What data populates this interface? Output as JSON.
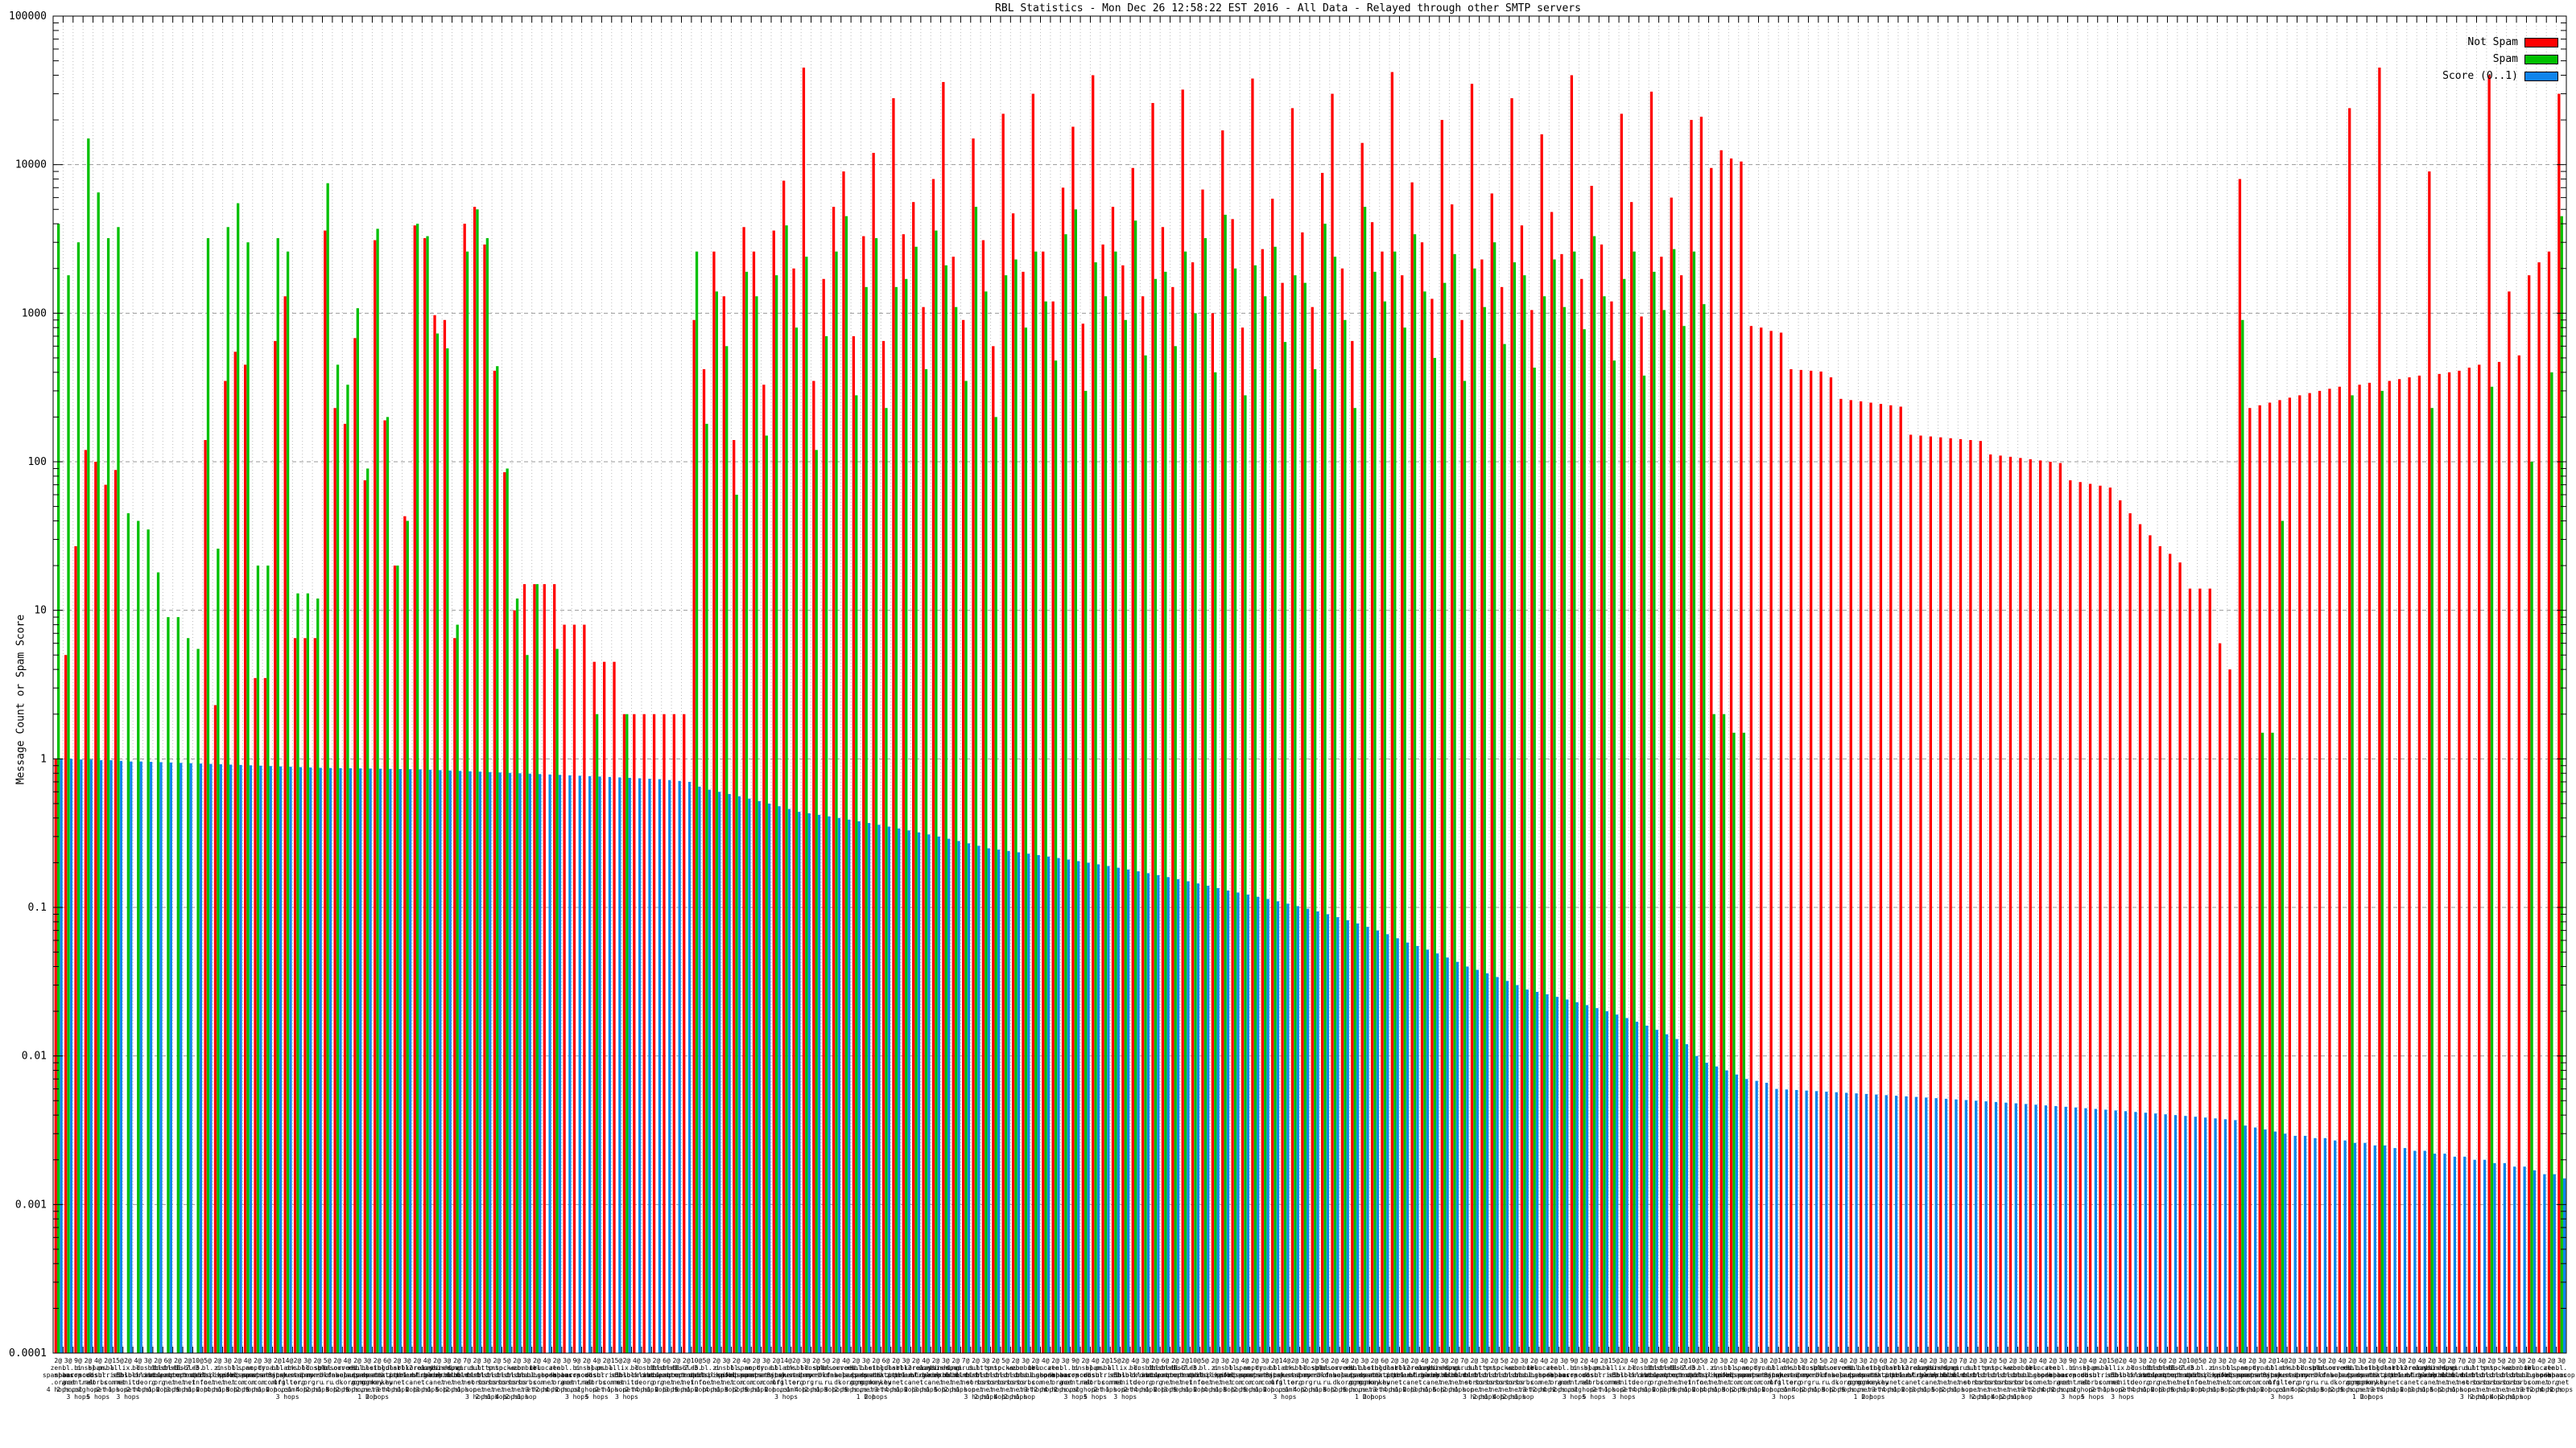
{
  "title": "RBL Statistics - Mon Dec 26 12:58:22 EST 2016 - All Data - Relayed through other SMTP servers",
  "chart_data": {
    "type": "bar",
    "title": "RBL Statistics - Mon Dec 26 12:58:22 EST 2016 - All Data - Relayed through other SMTP servers",
    "ylabel": "Message Count or Spam Score",
    "yscale": "log",
    "ylim": [
      0.0001,
      100000
    ],
    "ytick_labels": [
      "100000",
      "10000",
      "1000",
      "100",
      "10",
      "1",
      "0.1",
      "0.01",
      "0.001",
      "0.0001"
    ],
    "grid": true,
    "legend_position": "top-right-inside",
    "legend": [
      {
        "label": "Not Spam",
        "color": "#ff0000"
      },
      {
        "label": "Spam",
        "color": "#00c000"
      },
      {
        "label": "Score (0..1)",
        "color": "#0f84ec"
      }
    ],
    "colors": {
      "not_spam": "#ff0000",
      "spam": "#00c000",
      "score": "#0f84ec",
      "grid_minor": "#bbbbbb",
      "grid_major": "#999999",
      "frame": "#000000"
    },
    "n_categories": 252,
    "x_labels_note": "Per-bar labels of form count@rbl-domain N hops; drawn overlapping and illegible in source. Representative pool cycled across all 252 categories.",
    "x_label_pool": [
      "2@zen.spamhaus.org 4 hops",
      "3@bl.spamcop.net 2 hops",
      "9@b.barracudacentral.org 3 hops",
      "2@dnsbl.sorbs.net 1 hop",
      "4@spam.dnsbl.sorbs.net 5 hops",
      "2@psbl.surriel.com 2 hops",
      "15@all.s5h.net 1 hop",
      "2@ix.dnsbl.manitu.net 3 hops",
      "4@bl.blocklist.de 2 hops",
      "3@dnsbl.dronebl.org 4 hops",
      "2@cbl.abuseat.org 1 hop",
      "6@dnsbl-1.uceprotect.net 2 hops",
      "2@dnsbl-2.uceprotect.net 3 hops",
      "2@dnsbl-3.uceprotect.net 5 hops",
      "10@db.wpbl.info 1 hop",
      "5@bl.mailspike.net 2 hops",
      "2@z.mailspike.net 4 hops",
      "3@dnsbl.spfbl.net 1 hop",
      "2@bl.nordspam.com 3 hops",
      "4@spam.spamrats.com 2 hops",
      "2@noptr.spamrats.com 5 hops",
      "3@dyna.spamrats.com 1 hop",
      "2@bl.0spam.org 2 hops",
      "14@black.junkemailfilter.com 3 hops",
      "2@dnsbl.justspam.org 1 hop",
      "3@bl.drmx.org 4 hops",
      "2@dnsbl.rymsho.ru 2 hops",
      "5@rbl.rbldns.ru 1 hop",
      "2@spamsources.fabel.dk 3 hops",
      "4@orvedb.aupads.org 2 hops",
      "2@rsbl.aupads.org 5 hops",
      "3@bl.spameatingmonkey.net 1 hop",
      "2@netbl.spameatingmonkey.net 2 hops",
      "6@singular.ttk.pte.hu 3 hops",
      "2@dnsbl.zapbl.net 4 hops",
      "3@rbl2.triumf.ca 1 hop",
      "2@korea.services.net 2 hops",
      "4@relays.bl.gweep.ca 3 hops",
      "2@combined.rbl.msrbl.net 1 hop",
      "3@phishing.rbl.msrbl.net 5 hops",
      "2@spam.rbl.msrbl.net 2 hops",
      "7@virus.rbl.msrbl.net 1 hop",
      "2@dul.dnsbl.sorbs.net 3 hops",
      "3@http.dnsbl.sorbs.net 2 hops",
      "2@smtp.dnsbl.sorbs.net 1 hop",
      "5@socks.dnsbl.sorbs.net 4 hops",
      "2@web.dnsbl.sorbs.net 2 hops",
      "3@zombie.dnsbl.sorbs.net 1 hop",
      "2@ubl.unsubscore.com 3 hops",
      "4@truncate.gbudb.net 2 hops"
    ],
    "series": [
      {
        "name": "Not Spam",
        "color": "#ff0000",
        "values": [
          1,
          5,
          27,
          120,
          100,
          70,
          88,
          0,
          0,
          0,
          0,
          0,
          0,
          0,
          0,
          140,
          2.3,
          350,
          550,
          450,
          3.5,
          3.5,
          650,
          1300,
          6.5,
          6.5,
          6.5,
          3600,
          230,
          180,
          680,
          75,
          3100,
          190,
          20,
          43,
          3900,
          3200,
          970,
          900,
          6.5,
          4000,
          5200,
          2900,
          410,
          85,
          10,
          15,
          15,
          15,
          15,
          8,
          8,
          8,
          4.5,
          4.5,
          4.5,
          2,
          2,
          2,
          2,
          2,
          2,
          2,
          900,
          420,
          2600,
          1300,
          140,
          3800,
          2600,
          330,
          3600,
          7800,
          2000,
          45000,
          350,
          1700,
          5200,
          9000,
          700,
          3300,
          12000,
          650,
          28000,
          3400,
          5600,
          1100,
          8000,
          36000,
          2400,
          900,
          15000,
          3100,
          600,
          22000,
          4700,
          1900,
          30000,
          2600,
          1200,
          7000,
          18000,
          850,
          40000,
          2900,
          5200,
          2100,
          9500,
          1300,
          26000,
          3800,
          1500,
          32000,
          2200,
          6800,
          1000,
          17000,
          4300,
          800,
          38000,
          2700,
          5900,
          1600,
          24000,
          3500,
          1100,
          8800,
          30000,
          2000,
          650,
          14000,
          4100,
          2600,
          42000,
          1800,
          7600,
          3000,
          1250,
          20000,
          5400,
          900,
          35000,
          2300,
          6400,
          1500,
          28000,
          3900,
          1050,
          16000,
          4800,
          2500,
          40000,
          1700,
          7200,
          2900,
          1200,
          22000,
          5600,
          950,
          31000,
          2400,
          6000,
          1800,
          20000,
          21000,
          9500,
          12500,
          11000,
          10500,
          820,
          800,
          760,
          740,
          420,
          415,
          410,
          405,
          370,
          265,
          260,
          255,
          250,
          245,
          240,
          235,
          152,
          150,
          148,
          146,
          144,
          142,
          140,
          138,
          112,
          110,
          108,
          106,
          104,
          102,
          100,
          98,
          75,
          73,
          71,
          69,
          67,
          55,
          45,
          38,
          32,
          27,
          24,
          21,
          14,
          14,
          14,
          6,
          4,
          8000,
          230,
          240,
          250,
          260,
          270,
          280,
          290,
          300,
          310,
          320,
          24000,
          330,
          340,
          45000,
          350,
          360,
          370,
          380,
          9000,
          390,
          400,
          410,
          430,
          450,
          40000,
          470,
          1400,
          520,
          1800,
          2200,
          2600,
          30000
        ]
      },
      {
        "name": "Spam",
        "color": "#00c000",
        "values": [
          4000,
          1800,
          3000,
          15000,
          6500,
          3200,
          3800,
          45,
          40,
          35,
          18,
          9,
          9,
          6.5,
          5.5,
          3200,
          26,
          3800,
          5500,
          3000,
          20,
          20,
          3200,
          2600,
          13,
          13,
          12,
          7500,
          450,
          330,
          1080,
          90,
          3700,
          200,
          20,
          40,
          4000,
          3300,
          730,
          580,
          8,
          2600,
          5000,
          3200,
          440,
          90,
          12,
          5,
          15,
          0,
          5.5,
          0,
          0,
          0,
          2,
          0,
          0,
          2,
          0,
          0,
          0,
          0,
          0,
          0,
          2600,
          180,
          1400,
          600,
          60,
          1900,
          1300,
          150,
          1800,
          3900,
          800,
          2400,
          120,
          700,
          2600,
          4500,
          280,
          1500,
          3200,
          230,
          1500,
          1700,
          2800,
          420,
          3600,
          2100,
          1100,
          350,
          5200,
          1400,
          200,
          1800,
          2300,
          800,
          2600,
          1200,
          480,
          3400,
          5000,
          300,
          2200,
          1300,
          2600,
          900,
          4200,
          520,
          1700,
          1900,
          600,
          2600,
          1000,
          3200,
          400,
          4600,
          2000,
          280,
          2100,
          1300,
          2800,
          640,
          1800,
          1600,
          420,
          4000,
          2400,
          900,
          230,
          5200,
          1900,
          1200,
          2600,
          800,
          3400,
          1400,
          500,
          1600,
          2500,
          350,
          2000,
          1100,
          3000,
          620,
          2200,
          1800,
          430,
          1300,
          2300,
          1100,
          2600,
          780,
          3300,
          1300,
          480,
          1700,
          2600,
          380,
          1900,
          1050,
          2700,
          820,
          2600,
          1150,
          2,
          2,
          1.5,
          1.5,
          0,
          0,
          0,
          0,
          0,
          0,
          0,
          0,
          0,
          0,
          0,
          0,
          0,
          0,
          0,
          0,
          0,
          0,
          0,
          0,
          0,
          0,
          0,
          0,
          0,
          0,
          0,
          0,
          0,
          0,
          0,
          0,
          0,
          0,
          0,
          0,
          0,
          0,
          0,
          0,
          0,
          0,
          0,
          0,
          0,
          0,
          0,
          0,
          0,
          900,
          0,
          1.5,
          1.5,
          40,
          0,
          0,
          0,
          0,
          0,
          0,
          280,
          0,
          0,
          300,
          0,
          0,
          0,
          0,
          230,
          0,
          0,
          0,
          0,
          0,
          320,
          0,
          0,
          0,
          100,
          0,
          400,
          4500
        ]
      },
      {
        "name": "Score (0..1)",
        "color": "#0f84ec",
        "values": [
          1.0,
          1.0,
          0.99,
          0.99,
          0.98,
          0.98,
          0.97,
          0.96,
          0.96,
          0.955,
          0.95,
          0.945,
          0.94,
          0.935,
          0.93,
          0.925,
          0.92,
          0.915,
          0.91,
          0.905,
          0.9,
          0.895,
          0.89,
          0.885,
          0.88,
          0.875,
          0.87,
          0.868,
          0.866,
          0.864,
          0.862,
          0.86,
          0.858,
          0.856,
          0.854,
          0.852,
          0.85,
          0.845,
          0.84,
          0.835,
          0.83,
          0.825,
          0.82,
          0.815,
          0.81,
          0.805,
          0.8,
          0.795,
          0.79,
          0.785,
          0.78,
          0.775,
          0.77,
          0.765,
          0.76,
          0.755,
          0.75,
          0.745,
          0.74,
          0.735,
          0.73,
          0.72,
          0.71,
          0.7,
          0.65,
          0.62,
          0.6,
          0.58,
          0.56,
          0.54,
          0.52,
          0.5,
          0.48,
          0.46,
          0.44,
          0.43,
          0.42,
          0.41,
          0.4,
          0.39,
          0.38,
          0.37,
          0.36,
          0.35,
          0.34,
          0.33,
          0.32,
          0.31,
          0.3,
          0.29,
          0.28,
          0.27,
          0.26,
          0.25,
          0.245,
          0.24,
          0.235,
          0.23,
          0.225,
          0.22,
          0.215,
          0.21,
          0.205,
          0.2,
          0.195,
          0.19,
          0.185,
          0.18,
          0.175,
          0.17,
          0.165,
          0.16,
          0.155,
          0.15,
          0.145,
          0.14,
          0.135,
          0.13,
          0.126,
          0.122,
          0.118,
          0.114,
          0.11,
          0.106,
          0.102,
          0.098,
          0.094,
          0.09,
          0.086,
          0.082,
          0.078,
          0.074,
          0.07,
          0.066,
          0.062,
          0.058,
          0.055,
          0.052,
          0.049,
          0.046,
          0.043,
          0.04,
          0.038,
          0.036,
          0.034,
          0.032,
          0.03,
          0.028,
          0.027,
          0.026,
          0.025,
          0.024,
          0.023,
          0.022,
          0.021,
          0.02,
          0.019,
          0.018,
          0.017,
          0.016,
          0.015,
          0.014,
          0.013,
          0.012,
          0.01,
          0.009,
          0.0085,
          0.008,
          0.0075,
          0.007,
          0.0068,
          0.0066,
          0.006,
          0.00595,
          0.0059,
          0.00585,
          0.0058,
          0.00575,
          0.0057,
          0.00565,
          0.0056,
          0.00555,
          0.0055,
          0.00545,
          0.0054,
          0.00535,
          0.0053,
          0.00525,
          0.0052,
          0.00515,
          0.0051,
          0.00505,
          0.005,
          0.00495,
          0.0049,
          0.00485,
          0.0048,
          0.00475,
          0.0047,
          0.00465,
          0.0046,
          0.00455,
          0.0045,
          0.00445,
          0.0044,
          0.00435,
          0.0043,
          0.00425,
          0.0042,
          0.00415,
          0.0041,
          0.00405,
          0.004,
          0.00395,
          0.0039,
          0.00385,
          0.0038,
          0.00375,
          0.0037,
          0.0034,
          0.0033,
          0.0032,
          0.0031,
          0.003,
          0.0029,
          0.0029,
          0.0028,
          0.0028,
          0.0027,
          0.0027,
          0.0026,
          0.0026,
          0.0025,
          0.0025,
          0.0024,
          0.0024,
          0.0023,
          0.0023,
          0.0022,
          0.0022,
          0.0021,
          0.0021,
          0.002,
          0.002,
          0.0019,
          0.0019,
          0.0018,
          0.0018,
          0.0017,
          0.0016,
          0.0016,
          0.0015
        ]
      }
    ]
  }
}
